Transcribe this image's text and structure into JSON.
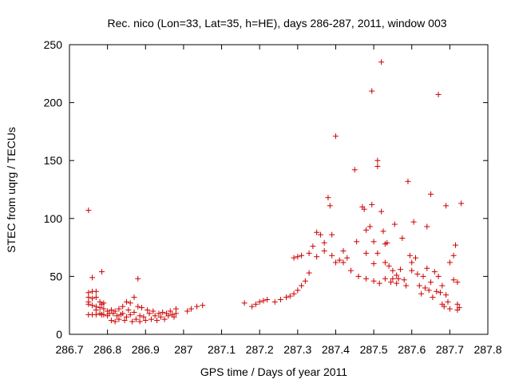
{
  "chart_data": {
    "type": "scatter",
    "title": "Rec. nico (Lon=33, Lat=35, h=HE), days 286-287, 2011, window 003",
    "xlabel": "GPS time / Days of year 2011",
    "ylabel": "STEC from uqrg / TECUs",
    "xlim": [
      286.7,
      287.8
    ],
    "ylim": [
      0,
      250
    ],
    "x_ticks": [
      "286.7",
      "286.8",
      "286.9",
      "287",
      "287.1",
      "287.2",
      "287.3",
      "287.4",
      "287.5",
      "287.6",
      "287.7",
      "287.8"
    ],
    "y_ticks": [
      "0",
      "50",
      "100",
      "150",
      "200",
      "250"
    ],
    "grid": false,
    "marker": "+",
    "color": "#cc0000",
    "series": [
      {
        "points": [
          [
            286.75,
            107
          ],
          [
            286.75,
            36
          ],
          [
            286.75,
            32
          ],
          [
            286.75,
            28
          ],
          [
            286.75,
            26
          ],
          [
            286.75,
            17
          ],
          [
            286.76,
            49
          ],
          [
            286.76,
            37
          ],
          [
            286.76,
            31
          ],
          [
            286.76,
            25
          ],
          [
            286.76,
            17
          ],
          [
            286.77,
            37
          ],
          [
            286.77,
            32
          ],
          [
            286.77,
            24
          ],
          [
            286.77,
            21
          ],
          [
            286.77,
            17
          ],
          [
            286.78,
            28
          ],
          [
            286.78,
            23
          ],
          [
            286.78,
            18
          ],
          [
            286.785,
            54
          ],
          [
            286.785,
            26
          ],
          [
            286.785,
            17
          ],
          [
            286.79,
            27
          ],
          [
            286.79,
            22
          ],
          [
            286.79,
            17
          ],
          [
            286.8,
            20
          ],
          [
            286.8,
            16
          ],
          [
            286.805,
            18
          ],
          [
            286.81,
            21
          ],
          [
            286.81,
            12
          ],
          [
            286.815,
            18
          ],
          [
            286.82,
            20
          ],
          [
            286.82,
            11
          ],
          [
            286.825,
            16
          ],
          [
            286.83,
            22
          ],
          [
            286.83,
            13
          ],
          [
            286.835,
            17
          ],
          [
            286.84,
            24
          ],
          [
            286.84,
            18
          ],
          [
            286.845,
            12
          ],
          [
            286.85,
            28
          ],
          [
            286.85,
            15
          ],
          [
            286.855,
            21
          ],
          [
            286.86,
            27
          ],
          [
            286.86,
            17
          ],
          [
            286.865,
            11
          ],
          [
            286.87,
            32
          ],
          [
            286.87,
            19
          ],
          [
            286.875,
            13
          ],
          [
            286.88,
            48
          ],
          [
            286.88,
            24
          ],
          [
            286.885,
            16
          ],
          [
            286.885,
            11
          ],
          [
            286.89,
            23
          ],
          [
            286.895,
            15
          ],
          [
            286.9,
            12
          ],
          [
            286.905,
            21
          ],
          [
            286.91,
            18
          ],
          [
            286.915,
            13
          ],
          [
            286.92,
            20
          ],
          [
            286.925,
            16
          ],
          [
            286.93,
            12
          ],
          [
            286.935,
            18
          ],
          [
            286.94,
            15
          ],
          [
            286.945,
            19
          ],
          [
            286.95,
            13
          ],
          [
            286.955,
            18
          ],
          [
            286.96,
            16
          ],
          [
            286.965,
            20
          ],
          [
            286.97,
            17
          ],
          [
            286.975,
            15
          ],
          [
            286.98,
            22
          ],
          [
            286.98,
            18
          ],
          [
            287.01,
            20
          ],
          [
            287.02,
            22
          ],
          [
            287.035,
            24
          ],
          [
            287.05,
            25
          ],
          [
            287.16,
            27
          ],
          [
            287.18,
            24
          ],
          [
            287.19,
            26
          ],
          [
            287.2,
            28
          ],
          [
            287.21,
            29
          ],
          [
            287.22,
            30
          ],
          [
            287.24,
            28
          ],
          [
            287.255,
            30
          ],
          [
            287.27,
            32
          ],
          [
            287.28,
            33
          ],
          [
            287.29,
            35
          ],
          [
            287.29,
            66
          ],
          [
            287.3,
            38
          ],
          [
            287.3,
            67
          ],
          [
            287.31,
            42
          ],
          [
            287.31,
            68
          ],
          [
            287.32,
            46
          ],
          [
            287.33,
            53
          ],
          [
            287.33,
            70
          ],
          [
            287.34,
            76
          ],
          [
            287.35,
            67
          ],
          [
            287.35,
            88
          ],
          [
            287.36,
            86
          ],
          [
            287.37,
            79
          ],
          [
            287.37,
            72
          ],
          [
            287.38,
            118
          ],
          [
            287.385,
            111
          ],
          [
            287.39,
            68
          ],
          [
            287.39,
            86
          ],
          [
            287.4,
            171
          ],
          [
            287.4,
            62
          ],
          [
            287.41,
            64
          ],
          [
            287.42,
            72
          ],
          [
            287.42,
            62
          ],
          [
            287.43,
            66
          ],
          [
            287.44,
            55
          ],
          [
            287.45,
            142
          ],
          [
            287.455,
            80
          ],
          [
            287.46,
            50
          ],
          [
            287.47,
            110
          ],
          [
            287.475,
            108
          ],
          [
            287.48,
            90
          ],
          [
            287.48,
            70
          ],
          [
            287.48,
            48
          ],
          [
            287.49,
            93
          ],
          [
            287.495,
            210
          ],
          [
            287.495,
            112
          ],
          [
            287.5,
            80
          ],
          [
            287.5,
            61
          ],
          [
            287.5,
            46
          ],
          [
            287.51,
            150
          ],
          [
            287.51,
            145
          ],
          [
            287.51,
            70
          ],
          [
            287.515,
            44
          ],
          [
            287.52,
            235
          ],
          [
            287.52,
            106
          ],
          [
            287.525,
            89
          ],
          [
            287.53,
            78
          ],
          [
            287.53,
            62
          ],
          [
            287.53,
            48
          ],
          [
            287.535,
            79
          ],
          [
            287.54,
            59
          ],
          [
            287.545,
            45
          ],
          [
            287.55,
            55
          ],
          [
            287.55,
            48
          ],
          [
            287.555,
            95
          ],
          [
            287.56,
            51
          ],
          [
            287.56,
            44
          ],
          [
            287.565,
            48
          ],
          [
            287.57,
            56
          ],
          [
            287.575,
            83
          ],
          [
            287.58,
            47
          ],
          [
            287.585,
            42
          ],
          [
            287.59,
            132
          ],
          [
            287.595,
            68
          ],
          [
            287.6,
            62
          ],
          [
            287.6,
            55
          ],
          [
            287.605,
            97
          ],
          [
            287.61,
            66
          ],
          [
            287.615,
            52
          ],
          [
            287.62,
            42
          ],
          [
            287.625,
            35
          ],
          [
            287.63,
            50
          ],
          [
            287.635,
            40
          ],
          [
            287.64,
            93
          ],
          [
            287.64,
            57
          ],
          [
            287.645,
            38
          ],
          [
            287.65,
            121
          ],
          [
            287.65,
            45
          ],
          [
            287.655,
            32
          ],
          [
            287.66,
            54
          ],
          [
            287.665,
            37
          ],
          [
            287.67,
            207
          ],
          [
            287.67,
            50
          ],
          [
            287.675,
            36
          ],
          [
            287.68,
            42
          ],
          [
            287.68,
            26
          ],
          [
            287.685,
            24
          ],
          [
            287.69,
            111
          ],
          [
            287.69,
            34
          ],
          [
            287.695,
            28
          ],
          [
            287.7,
            62
          ],
          [
            287.7,
            22
          ],
          [
            287.71,
            68
          ],
          [
            287.71,
            47
          ],
          [
            287.715,
            77
          ],
          [
            287.72,
            45
          ],
          [
            287.72,
            26
          ],
          [
            287.72,
            21
          ],
          [
            287.73,
            113
          ],
          [
            287.725,
            23
          ]
        ]
      }
    ]
  }
}
